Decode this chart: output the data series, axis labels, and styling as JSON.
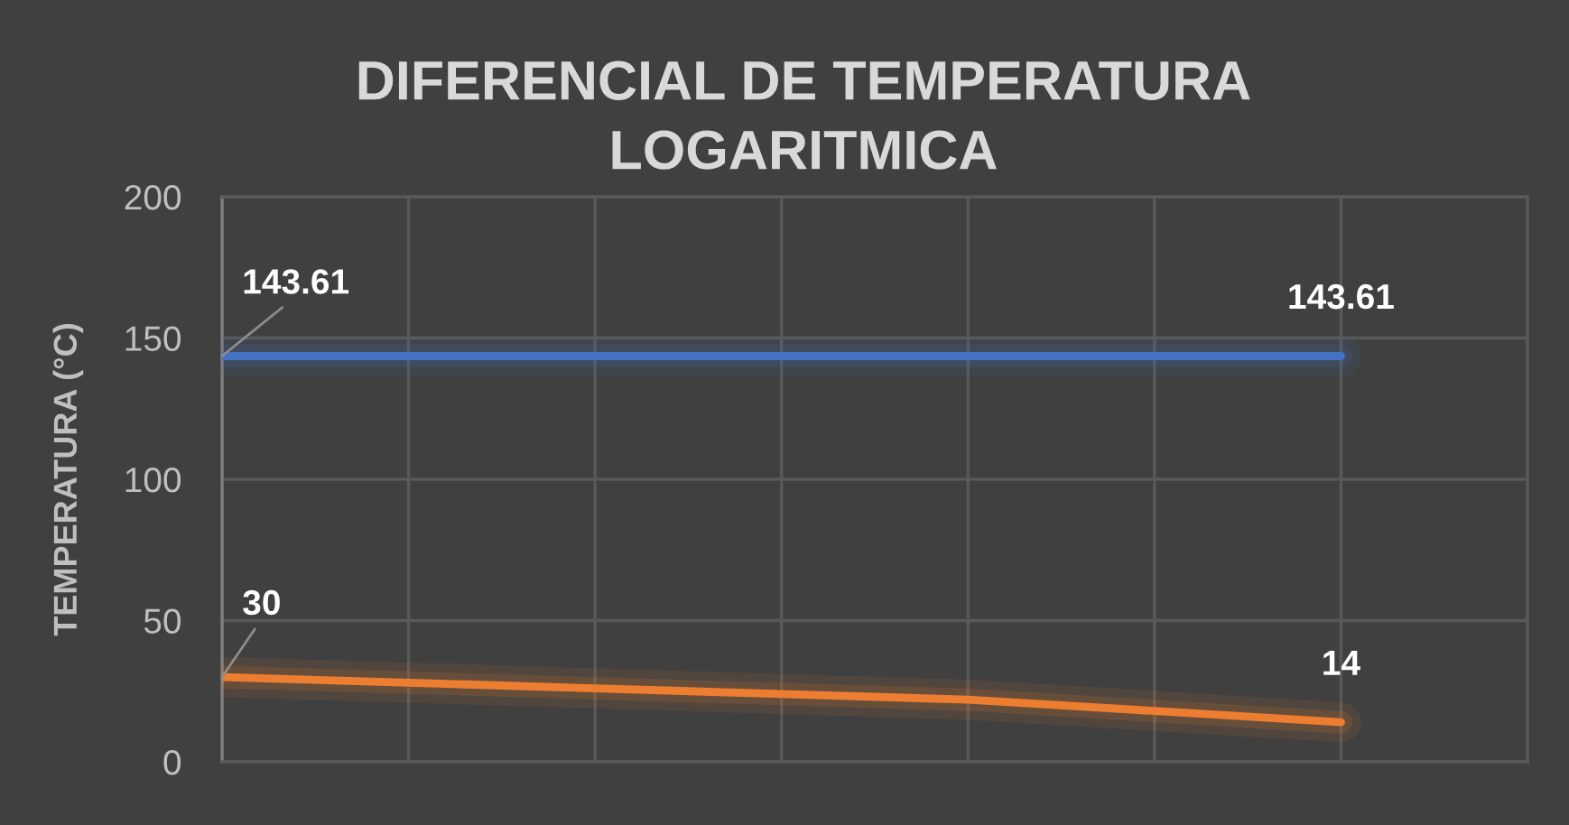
{
  "chart_data": {
    "type": "line",
    "title": "DIFERENCIAL DE TEMPERATURA LOGARITMICA",
    "ylabel": "TEMPERATURA (°C)",
    "categories": [
      null,
      null,
      null,
      null,
      null,
      null,
      null,
      null
    ],
    "series": [
      {
        "color": "#4472c4",
        "values": [
          143.61,
          143.61,
          143.61,
          143.61,
          143.61,
          143.61,
          143.61,
          null
        ],
        "value_labels": [
          "143.61",
          null,
          null,
          null,
          null,
          null,
          "143.61",
          null
        ]
      },
      {
        "color": "#ed7d31",
        "values": [
          30,
          28,
          26,
          24,
          22,
          18,
          14,
          null
        ],
        "value_labels": [
          "30",
          null,
          null,
          null,
          null,
          null,
          "14",
          null
        ]
      }
    ],
    "ylim": [
      0,
      200
    ],
    "yticks": [
      0,
      50,
      100,
      150,
      200
    ],
    "grid": true,
    "marker": "none",
    "line_style": "solid"
  }
}
